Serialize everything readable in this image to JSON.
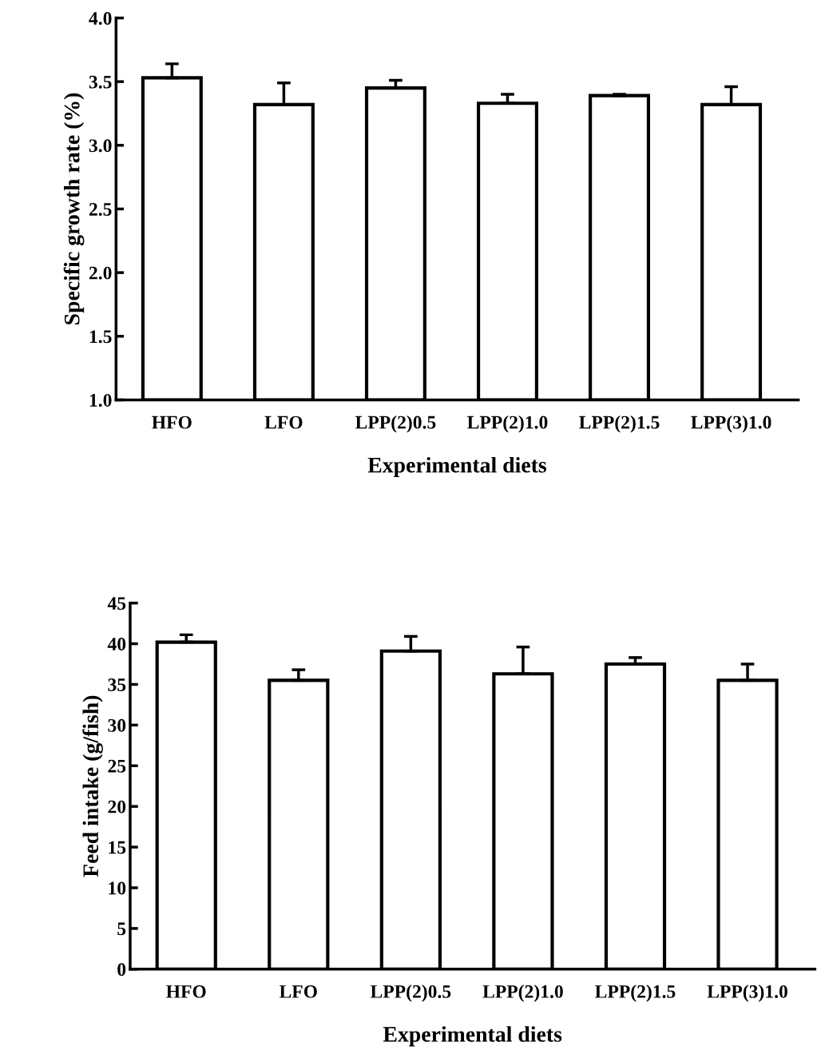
{
  "chart_data": [
    {
      "type": "bar",
      "ylabel": "Specific growth rate (%)",
      "xlabel": "Experimental diets",
      "categories": [
        "HFO",
        "LFO",
        "LPP(2)0.5",
        "LPP(2)1.0",
        "LPP(2)1.5",
        "LPP(3)1.0"
      ],
      "values": [
        3.53,
        3.32,
        3.45,
        3.33,
        3.39,
        3.32
      ],
      "errors": [
        [
          3.53,
          3.64
        ],
        [
          3.32,
          3.49
        ],
        [
          3.45,
          3.51
        ],
        [
          3.33,
          3.4
        ],
        [
          3.39,
          3.4
        ],
        [
          3.32,
          3.46
        ]
      ],
      "color": "#ffffff",
      "ylim": [
        1.0,
        4.0
      ],
      "yticks": [
        {
          "value": 1.0,
          "label": "1.0"
        },
        1.5,
        {
          "value": 2.0,
          "label": "2.0"
        },
        2.5,
        {
          "value": 3.0,
          "label": "3.0"
        },
        3.5,
        {
          "value": 4.0,
          "label": "4.0"
        }
      ],
      "grid": false
    },
    {
      "type": "bar",
      "ylabel": "Feed intake (g/fish)",
      "xlabel": "Experimental diets",
      "categories": [
        "HFO",
        "LFO",
        "LPP(2)0.5",
        "LPP(2)1.0",
        "LPP(2)1.5",
        "LPP(3)1.0"
      ],
      "values": [
        40.2,
        35.5,
        39.1,
        36.3,
        37.5,
        35.5
      ],
      "errors": [
        [
          40.2,
          41.1
        ],
        [
          35.5,
          36.8
        ],
        [
          39.1,
          40.9
        ],
        [
          36.3,
          39.6
        ],
        [
          37.5,
          38.3
        ],
        [
          35.5,
          37.5
        ]
      ],
      "color": "#ffffff",
      "ylim": [
        0,
        45
      ],
      "yticks": [
        0,
        5,
        10,
        15,
        20,
        25,
        30,
        35,
        40,
        45
      ],
      "grid": false
    }
  ]
}
